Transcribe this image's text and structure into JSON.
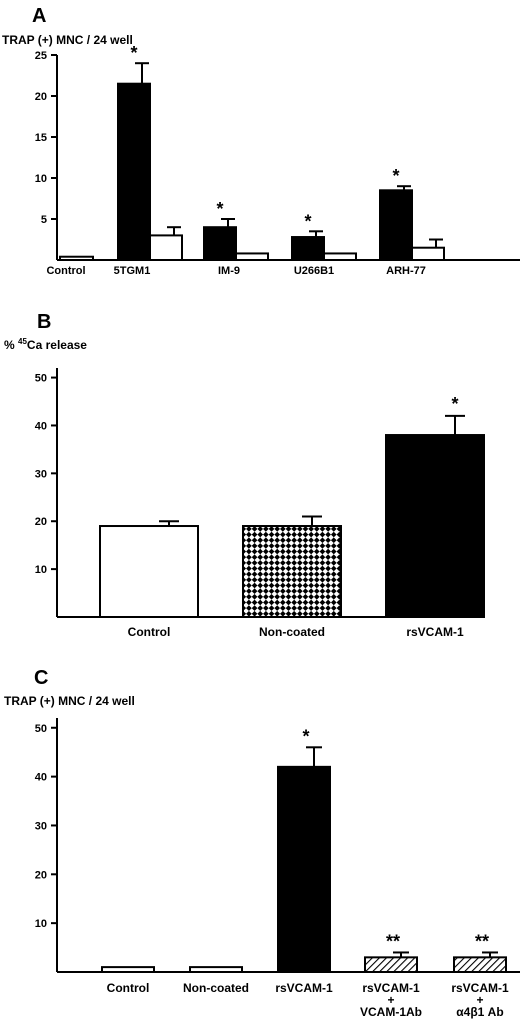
{
  "chart_data": [
    {
      "panel": "A",
      "type": "bar",
      "ylabel": "TRAP (+) MNC / 24 well",
      "ylim": [
        0,
        25
      ],
      "yticks": [
        5,
        10,
        15,
        20,
        25
      ],
      "categories": [
        "Control",
        "5TGM1",
        "IM-9",
        "U266B1",
        "ARH-77"
      ],
      "series": [
        {
          "fill": "black",
          "values": [
            null,
            21.5,
            4.0,
            2.8,
            8.5
          ],
          "errors": [
            null,
            2.5,
            1.0,
            0.7,
            0.5
          ],
          "annotations": [
            "",
            "*",
            "*",
            "*",
            "*"
          ]
        },
        {
          "fill": "white",
          "values": [
            0.4,
            3.0,
            0.8,
            0.8,
            1.5
          ],
          "errors": [
            0,
            1.0,
            0,
            0,
            1.0
          ],
          "annotations": [
            "",
            "",
            "",
            "",
            ""
          ]
        }
      ]
    },
    {
      "panel": "B",
      "type": "bar",
      "ylabel": "% 45Ca release",
      "ylabel_parts": {
        "prefix": "% ",
        "superscript": "45",
        "suffix": "Ca  release"
      },
      "ylim": [
        0,
        52
      ],
      "yticks": [
        10,
        20,
        30,
        40,
        50
      ],
      "categories": [
        "Control",
        "Non-coated",
        "rsVCAM-1"
      ],
      "values": [
        19,
        19,
        38
      ],
      "errors": [
        1,
        2,
        4
      ],
      "fills": [
        "white",
        "checker",
        "black"
      ],
      "annotations": [
        "",
        "",
        "*"
      ]
    },
    {
      "panel": "C",
      "type": "bar",
      "ylabel": "TRAP (+) MNC / 24 well",
      "ylim": [
        0,
        52
      ],
      "yticks": [
        10,
        20,
        30,
        40,
        50
      ],
      "categories": [
        [
          "Control"
        ],
        [
          "Non-coated"
        ],
        [
          "rsVCAM-1"
        ],
        [
          "rsVCAM-1",
          "+",
          "VCAM-1Ab"
        ],
        [
          "rsVCAM-1",
          "+",
          "α4β1 Ab"
        ]
      ],
      "values": [
        1,
        1,
        42,
        3,
        3
      ],
      "errors": [
        0,
        0,
        4,
        1,
        1
      ],
      "fills": [
        "white",
        "white",
        "black",
        "hatch",
        "hatch"
      ],
      "annotations": [
        "",
        "",
        "*",
        "**",
        "**"
      ]
    }
  ]
}
